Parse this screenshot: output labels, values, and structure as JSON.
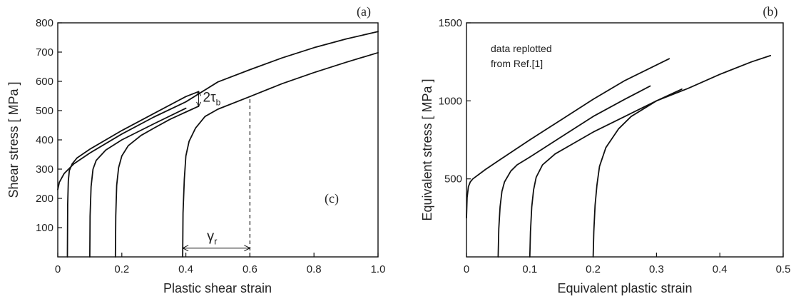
{
  "chart_data": [
    {
      "type": "line",
      "panel_label": "(a)",
      "inner_label": "(c)",
      "xlabel": "Plastic shear strain",
      "ylabel": "Shear stress   [ MPa ]",
      "xlim": [
        0,
        1.0
      ],
      "ylim": [
        0,
        800
      ],
      "xticks": [
        0,
        0.2,
        0.4,
        0.6,
        0.8,
        1.0
      ],
      "xtick_labels": [
        "0",
        "0.2",
        "0.4",
        "0.6",
        "0.8",
        "1.0"
      ],
      "yticks": [
        100,
        200,
        300,
        400,
        500,
        600,
        700,
        800
      ],
      "ytick_labels": [
        "100",
        "200",
        "300",
        "400",
        "500",
        "600",
        "700",
        "800"
      ],
      "grid": false,
      "annotations": {
        "tau_b": "2τ",
        "tau_b_sub": "b",
        "gamma_r": "γ",
        "gamma_r_sub": "r"
      },
      "series": [
        {
          "x": [
            0,
            0.005,
            0.02,
            0.05,
            0.1,
            0.2,
            0.3,
            0.4,
            0.5,
            0.6,
            0.7,
            0.8,
            0.9,
            1.0
          ],
          "y": [
            230,
            255,
            285,
            318,
            355,
            420,
            478,
            530,
            598,
            640,
            680,
            715,
            745,
            770
          ]
        },
        {
          "x": [
            0.03,
            0.031,
            0.033,
            0.036,
            0.045,
            0.06,
            0.1,
            0.2,
            0.3,
            0.4,
            0.44
          ],
          "y": [
            0,
            180,
            260,
            295,
            318,
            338,
            368,
            432,
            490,
            548,
            565
          ]
        },
        {
          "x": [
            0.1,
            0.101,
            0.104,
            0.11,
            0.12,
            0.15,
            0.2,
            0.3,
            0.4
          ],
          "y": [
            0,
            140,
            240,
            300,
            330,
            365,
            400,
            455,
            508
          ]
        },
        {
          "x": [
            0.18,
            0.181,
            0.184,
            0.19,
            0.2,
            0.22,
            0.26,
            0.3,
            0.35,
            0.4,
            0.44
          ],
          "y": [
            0,
            140,
            245,
            305,
            345,
            380,
            415,
            440,
            470,
            495,
            515
          ]
        },
        {
          "x": [
            0.39,
            0.391,
            0.395,
            0.4,
            0.41,
            0.43,
            0.46,
            0.5,
            0.6,
            0.7,
            0.8,
            0.9,
            1.0
          ],
          "y": [
            0,
            150,
            265,
            345,
            395,
            440,
            480,
            505,
            548,
            592,
            630,
            665,
            698
          ]
        }
      ]
    },
    {
      "type": "line",
      "panel_label": "(b)",
      "xlabel": "Equivalent plastic strain",
      "ylabel": "Equivalent stress  [ MPa ]",
      "xlim": [
        0,
        0.5
      ],
      "ylim": [
        0,
        1500
      ],
      "xticks": [
        0,
        0.1,
        0.2,
        0.3,
        0.4,
        0.5
      ],
      "xtick_labels": [
        "0",
        "0.1",
        "0.2",
        "0.3",
        "0.4",
        "0.5"
      ],
      "yticks": [
        500,
        1000,
        1500
      ],
      "ytick_labels": [
        "500",
        "1000",
        "1500"
      ],
      "grid": false,
      "note": [
        "data replotted",
        "from Ref.[1]"
      ],
      "series": [
        {
          "x": [
            0,
            0.001,
            0.003,
            0.006,
            0.01,
            0.03,
            0.05,
            0.1,
            0.15,
            0.2,
            0.25,
            0.29,
            0.32
          ],
          "y": [
            250,
            380,
            450,
            480,
            500,
            560,
            615,
            750,
            880,
            1010,
            1130,
            1210,
            1270
          ]
        },
        {
          "x": [
            0.05,
            0.051,
            0.053,
            0.056,
            0.06,
            0.07,
            0.08,
            0.1,
            0.15,
            0.2,
            0.25,
            0.29
          ],
          "y": [
            0,
            180,
            320,
            420,
            480,
            550,
            590,
            640,
            770,
            900,
            1010,
            1095
          ]
        },
        {
          "x": [
            0.1,
            0.101,
            0.103,
            0.106,
            0.11,
            0.12,
            0.14,
            0.17,
            0.2,
            0.25,
            0.3,
            0.34
          ],
          "y": [
            0,
            160,
            320,
            430,
            510,
            590,
            660,
            730,
            800,
            900,
            1000,
            1075
          ]
        },
        {
          "x": [
            0.2,
            0.201,
            0.203,
            0.206,
            0.21,
            0.22,
            0.24,
            0.26,
            0.28,
            0.3,
            0.35,
            0.4,
            0.45,
            0.48
          ],
          "y": [
            0,
            160,
            330,
            460,
            580,
            700,
            820,
            900,
            950,
            1000,
            1080,
            1170,
            1250,
            1290
          ]
        }
      ]
    }
  ]
}
